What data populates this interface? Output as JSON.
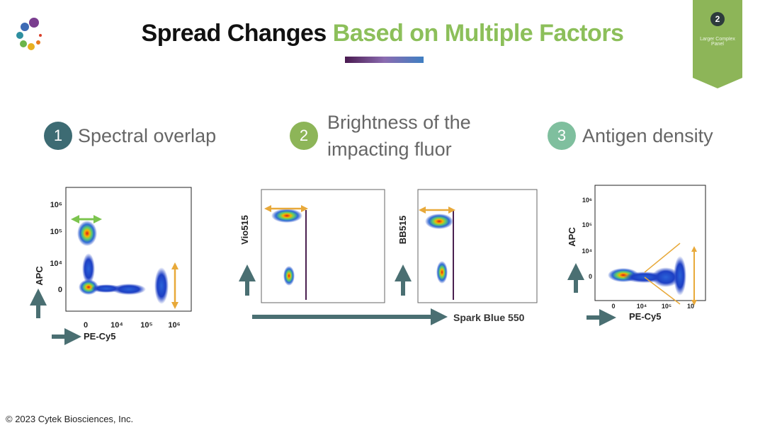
{
  "header": {
    "title_part1": "Spread Changes",
    "title_part2": "Based on Multiple Factors"
  },
  "badge": {
    "number": "2",
    "label": "Larger Complex Panel"
  },
  "factors": [
    {
      "number": "1",
      "label": "Spectral overlap"
    },
    {
      "number": "2",
      "label": "Brightness of the impacting fluor"
    },
    {
      "number": "3",
      "label": "Antigen density"
    }
  ],
  "plots": {
    "spectral": {
      "y_label": "APC",
      "x_label": "PE-Cy5",
      "yticks": [
        "10⁶",
        "10⁵",
        "10⁴",
        "0"
      ],
      "xticks": [
        "0",
        "10⁴",
        "10⁵",
        "10⁶"
      ]
    },
    "brightness": {
      "y_label_left": "Vio515",
      "y_label_right": "BB515",
      "x_label": "Spark Blue 550"
    },
    "density": {
      "y_label": "APC",
      "x_label": "PE-Cy5",
      "yticks": [
        "10⁶",
        "10⁵",
        "10⁴",
        "0"
      ],
      "xticks": [
        "0",
        "10⁴",
        "10⁵",
        "10"
      ]
    }
  },
  "footer": "© 2023 Cytek Biosciences, Inc."
}
